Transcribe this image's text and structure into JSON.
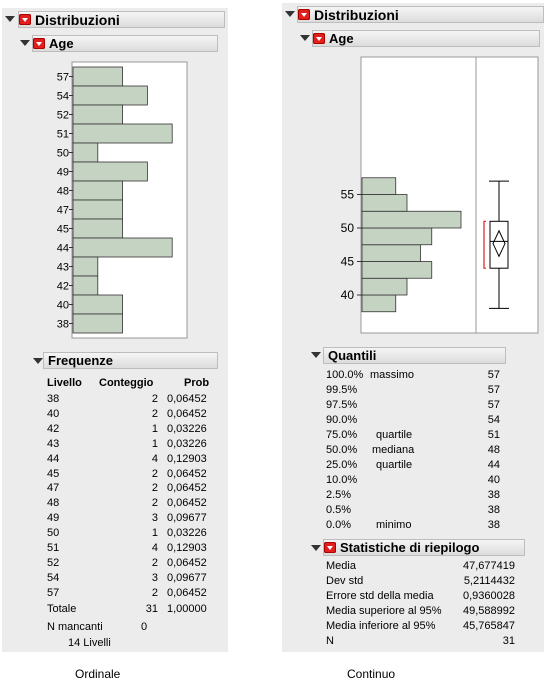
{
  "left": {
    "dist_title": "Distribuzioni",
    "var_title": "Age",
    "bar_labels": [
      "57",
      "54",
      "52",
      "51",
      "50",
      "49",
      "48",
      "47",
      "45",
      "44",
      "43",
      "42",
      "40",
      "38"
    ],
    "bar_counts": [
      2,
      3,
      2,
      4,
      1,
      3,
      2,
      2,
      2,
      4,
      1,
      1,
      2,
      2
    ],
    "freq_title": "Frequenze",
    "freq_headers": [
      "Livello",
      "Conteggio",
      "Prob"
    ],
    "freq_rows": [
      [
        "38",
        "2",
        "0,06452"
      ],
      [
        "40",
        "2",
        "0,06452"
      ],
      [
        "42",
        "1",
        "0,03226"
      ],
      [
        "43",
        "1",
        "0,03226"
      ],
      [
        "44",
        "4",
        "0,12903"
      ],
      [
        "45",
        "2",
        "0,06452"
      ],
      [
        "47",
        "2",
        "0,06452"
      ],
      [
        "48",
        "2",
        "0,06452"
      ],
      [
        "49",
        "3",
        "0,09677"
      ],
      [
        "50",
        "1",
        "0,03226"
      ],
      [
        "51",
        "4",
        "0,12903"
      ],
      [
        "52",
        "2",
        "0,06452"
      ],
      [
        "54",
        "3",
        "0,09677"
      ],
      [
        "57",
        "2",
        "0,06452"
      ]
    ],
    "totale_label": "Totale",
    "totale_count": "31",
    "totale_prob": "1,00000",
    "missing_label": "N mancanti",
    "missing_value": "0",
    "levels_text": "14  Livelli",
    "caption": "Ordinale"
  },
  "right": {
    "dist_title": "Distribuzioni",
    "var_title": "Age",
    "axis_ticks": [
      "55",
      "50",
      "45",
      "40"
    ],
    "histogram_bins": [
      {
        "from": 37.5,
        "to": 40,
        "count": 1.5
      },
      {
        "from": 40,
        "to": 42.5,
        "count": 2.0
      },
      {
        "from": 42.5,
        "to": 45,
        "count": 3.1
      },
      {
        "from": 45,
        "to": 47.5,
        "count": 2.6
      },
      {
        "from": 47.5,
        "to": 50,
        "count": 3.1
      },
      {
        "from": 50,
        "to": 52.5,
        "count": 4.4
      },
      {
        "from": 52.5,
        "to": 55,
        "count": 2.0
      },
      {
        "from": 55,
        "to": 57.5,
        "count": 1.5
      }
    ],
    "quantiles_title": "Quantili",
    "quantiles": [
      [
        "100.0%",
        "massimo",
        "57"
      ],
      [
        "99.5%",
        "",
        "57"
      ],
      [
        "97.5%",
        "",
        "57"
      ],
      [
        "90.0%",
        "",
        "54"
      ],
      [
        "75.0%",
        "quartile",
        "51"
      ],
      [
        "50.0%",
        "mediana",
        "48"
      ],
      [
        "25.0%",
        "quartile",
        "44"
      ],
      [
        "10.0%",
        "",
        "40"
      ],
      [
        "2.5%",
        "",
        "38"
      ],
      [
        "0.5%",
        "",
        "38"
      ],
      [
        "0.0%",
        "minimo",
        "38"
      ]
    ],
    "stats_title": "Statistiche di riepilogo",
    "stats": [
      [
        "Media",
        "47,677419"
      ],
      [
        "Dev std",
        "5,2114432"
      ],
      [
        "Errore std della media",
        "0,9360028"
      ],
      [
        "Media superiore al 95%",
        "49,588992"
      ],
      [
        "Media inferiore al 95%",
        "45,765847"
      ],
      [
        "N",
        "31"
      ]
    ],
    "caption": "Continuo"
  },
  "colors": {
    "bar_fill": "#c5d3c2",
    "bar_stroke": "#333333",
    "red": "#e02020",
    "panel": "#ececec"
  }
}
